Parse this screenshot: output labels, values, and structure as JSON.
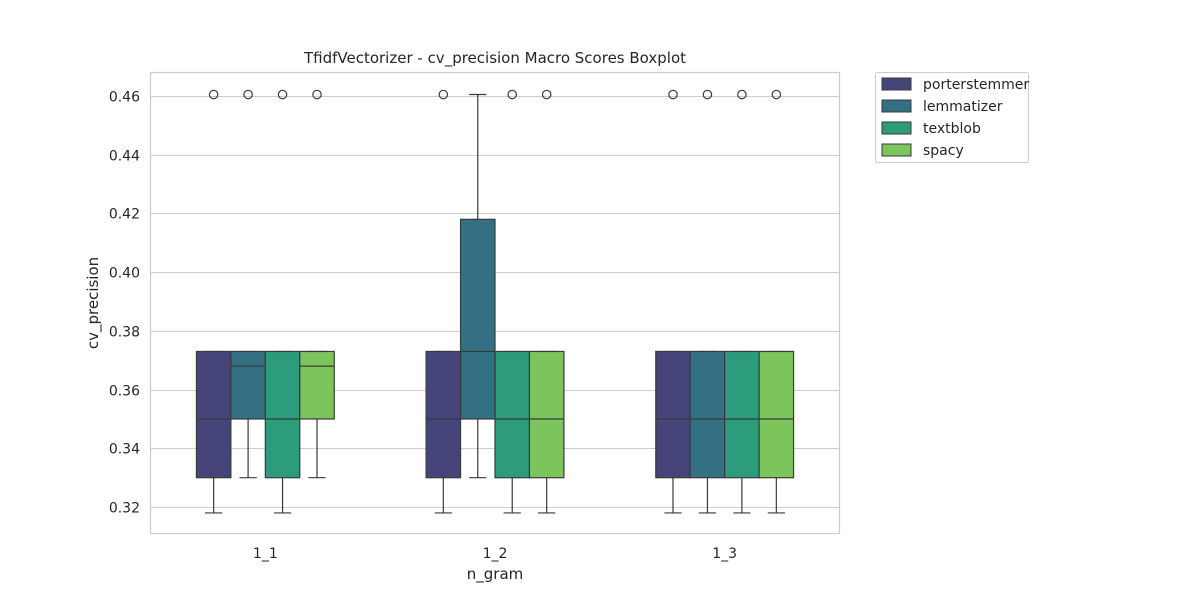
{
  "chart_data": {
    "type": "boxplot",
    "title": "TfidfVectorizer - cv_precision Macro Scores Boxplot",
    "xlabel": "n_gram",
    "ylabel": "cv_precision",
    "ylim": [
      0.311,
      0.468
    ],
    "yticks": [
      0.32,
      0.34,
      0.36,
      0.38,
      0.4,
      0.42,
      0.44,
      0.46
    ],
    "ytick_labels": [
      "0.32",
      "0.34",
      "0.36",
      "0.38",
      "0.40",
      "0.42",
      "0.44",
      "0.46"
    ],
    "categories": [
      "1_1",
      "1_2",
      "1_3"
    ],
    "grid": true,
    "legend_position": "outside-top-right",
    "series": [
      {
        "name": "porterstemmer",
        "color": "#45457a",
        "boxes": [
          {
            "whislo": 0.318,
            "q1": 0.33,
            "median": 0.35,
            "q3": 0.373,
            "whishi": 0.373,
            "fliers": [
              0.4605
            ]
          },
          {
            "whislo": 0.318,
            "q1": 0.33,
            "median": 0.35,
            "q3": 0.373,
            "whishi": 0.373,
            "fliers": [
              0.4605
            ]
          },
          {
            "whislo": 0.318,
            "q1": 0.33,
            "median": 0.35,
            "q3": 0.373,
            "whishi": 0.373,
            "fliers": [
              0.4605
            ]
          }
        ]
      },
      {
        "name": "lemmatizer",
        "color": "#337084",
        "boxes": [
          {
            "whislo": 0.33,
            "q1": 0.35,
            "median": 0.368,
            "q3": 0.373,
            "whishi": 0.373,
            "fliers": [
              0.4605
            ]
          },
          {
            "whislo": 0.33,
            "q1": 0.35,
            "median": 0.373,
            "q3": 0.418,
            "whishi": 0.4605,
            "fliers": []
          },
          {
            "whislo": 0.318,
            "q1": 0.33,
            "median": 0.35,
            "q3": 0.373,
            "whishi": 0.373,
            "fliers": [
              0.4605
            ]
          }
        ]
      },
      {
        "name": "textblob",
        "color": "#2c9c7c",
        "boxes": [
          {
            "whislo": 0.318,
            "q1": 0.33,
            "median": 0.35,
            "q3": 0.373,
            "whishi": 0.373,
            "fliers": [
              0.4605
            ]
          },
          {
            "whislo": 0.318,
            "q1": 0.33,
            "median": 0.35,
            "q3": 0.373,
            "whishi": 0.373,
            "fliers": [
              0.4605
            ]
          },
          {
            "whislo": 0.318,
            "q1": 0.33,
            "median": 0.35,
            "q3": 0.373,
            "whishi": 0.373,
            "fliers": [
              0.4605
            ]
          }
        ]
      },
      {
        "name": "spacy",
        "color": "#7cc45c",
        "boxes": [
          {
            "whislo": 0.33,
            "q1": 0.35,
            "median": 0.368,
            "q3": 0.373,
            "whishi": 0.373,
            "fliers": [
              0.4605
            ]
          },
          {
            "whislo": 0.318,
            "q1": 0.33,
            "median": 0.35,
            "q3": 0.373,
            "whishi": 0.373,
            "fliers": [
              0.4605
            ]
          },
          {
            "whislo": 0.318,
            "q1": 0.33,
            "median": 0.35,
            "q3": 0.373,
            "whishi": 0.373,
            "fliers": [
              0.4605
            ]
          }
        ]
      }
    ]
  }
}
